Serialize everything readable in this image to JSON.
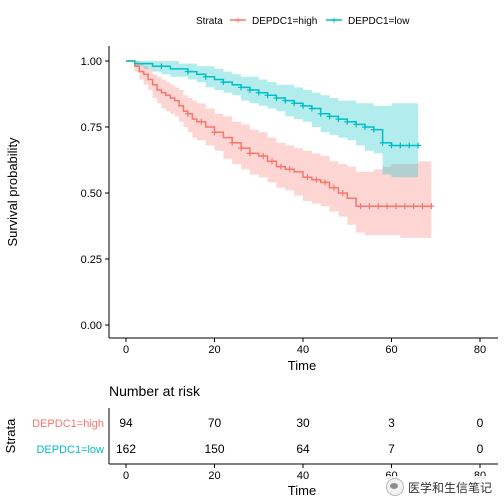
{
  "chart_data": {
    "type": "line",
    "xlabel": "Time",
    "ylabel": "Survival probability",
    "xlim": [
      0,
      80
    ],
    "ylim": [
      0,
      1
    ],
    "x_ticks": [
      0,
      20,
      40,
      60,
      80
    ],
    "y_ticks": [
      "0.00",
      "0.25",
      "0.50",
      "0.75",
      "1.00"
    ],
    "grid": false,
    "legend": {
      "title": "Strata",
      "position": "top"
    },
    "series": [
      {
        "name": "DEPDC1=high",
        "color": "#F8766D",
        "fill": "#F8766D",
        "x": [
          0,
          2,
          3,
          4,
          5,
          6,
          7,
          8,
          9,
          10,
          11,
          12,
          13,
          14,
          15,
          16,
          18,
          20,
          22,
          24,
          26,
          28,
          30,
          32,
          34,
          36,
          38,
          40,
          42,
          44,
          46,
          48,
          50,
          52,
          54,
          56,
          58,
          60,
          62,
          64,
          66,
          68,
          69
        ],
        "y": [
          1.0,
          0.98,
          0.96,
          0.95,
          0.93,
          0.91,
          0.89,
          0.88,
          0.87,
          0.86,
          0.85,
          0.83,
          0.81,
          0.8,
          0.78,
          0.77,
          0.75,
          0.73,
          0.71,
          0.69,
          0.67,
          0.65,
          0.64,
          0.62,
          0.6,
          0.59,
          0.58,
          0.56,
          0.55,
          0.54,
          0.52,
          0.5,
          0.48,
          0.45,
          0.45,
          0.45,
          0.45,
          0.45,
          0.45,
          0.45,
          0.45,
          0.45,
          0.45
        ],
        "upper": [
          1.0,
          1.0,
          0.99,
          0.98,
          0.97,
          0.95,
          0.94,
          0.93,
          0.92,
          0.91,
          0.9,
          0.89,
          0.87,
          0.86,
          0.85,
          0.84,
          0.82,
          0.8,
          0.79,
          0.77,
          0.76,
          0.74,
          0.73,
          0.71,
          0.69,
          0.68,
          0.67,
          0.66,
          0.65,
          0.64,
          0.62,
          0.61,
          0.6,
          0.58,
          0.58,
          0.59,
          0.6,
          0.61,
          0.61,
          0.61,
          0.62,
          0.62,
          0.62
        ],
        "lower": [
          1.0,
          0.96,
          0.93,
          0.91,
          0.89,
          0.86,
          0.84,
          0.82,
          0.81,
          0.8,
          0.79,
          0.77,
          0.75,
          0.73,
          0.71,
          0.7,
          0.68,
          0.66,
          0.63,
          0.61,
          0.59,
          0.57,
          0.56,
          0.54,
          0.52,
          0.51,
          0.49,
          0.47,
          0.46,
          0.45,
          0.43,
          0.41,
          0.38,
          0.35,
          0.34,
          0.34,
          0.34,
          0.34,
          0.33,
          0.33,
          0.33,
          0.33,
          0.33
        ],
        "censor_x": [
          14,
          17,
          20,
          24,
          26,
          28,
          31,
          33,
          35,
          37,
          41,
          43,
          45,
          47,
          49,
          53,
          55,
          57,
          59,
          61,
          63,
          65,
          67,
          69
        ],
        "risk": [
          "94",
          "70",
          "30",
          "3",
          "0"
        ]
      },
      {
        "name": "DEPDC1=low",
        "color": "#00BFC4",
        "fill": "#00BFC4",
        "x": [
          0,
          2,
          4,
          6,
          8,
          10,
          12,
          14,
          16,
          18,
          20,
          22,
          24,
          26,
          28,
          30,
          32,
          34,
          36,
          38,
          40,
          42,
          44,
          46,
          48,
          50,
          52,
          54,
          56,
          58,
          60,
          62,
          64,
          66
        ],
        "y": [
          1.0,
          0.99,
          0.99,
          0.98,
          0.98,
          0.97,
          0.97,
          0.96,
          0.95,
          0.94,
          0.93,
          0.92,
          0.91,
          0.9,
          0.89,
          0.88,
          0.87,
          0.86,
          0.85,
          0.84,
          0.83,
          0.82,
          0.8,
          0.79,
          0.78,
          0.77,
          0.76,
          0.75,
          0.74,
          0.69,
          0.68,
          0.68,
          0.68,
          0.68
        ],
        "upper": [
          1.0,
          1.0,
          1.0,
          1.0,
          1.0,
          1.0,
          0.99,
          0.99,
          0.98,
          0.98,
          0.97,
          0.96,
          0.95,
          0.94,
          0.94,
          0.93,
          0.92,
          0.91,
          0.91,
          0.9,
          0.89,
          0.88,
          0.87,
          0.86,
          0.85,
          0.85,
          0.84,
          0.84,
          0.83,
          0.83,
          0.84,
          0.84,
          0.84,
          0.84
        ],
        "lower": [
          1.0,
          0.98,
          0.97,
          0.96,
          0.95,
          0.94,
          0.94,
          0.93,
          0.92,
          0.9,
          0.89,
          0.88,
          0.87,
          0.85,
          0.84,
          0.83,
          0.82,
          0.81,
          0.79,
          0.78,
          0.77,
          0.75,
          0.73,
          0.72,
          0.71,
          0.7,
          0.68,
          0.66,
          0.65,
          0.57,
          0.56,
          0.56,
          0.56,
          0.56
        ],
        "censor_x": [
          8,
          14,
          18,
          22,
          26,
          28,
          30,
          32,
          34,
          36,
          38,
          40,
          42,
          44,
          46,
          48,
          50,
          52,
          54,
          56,
          58,
          60,
          62,
          64,
          66
        ],
        "risk": [
          "162",
          "150",
          "64",
          "7",
          "0"
        ]
      }
    ],
    "risk_table": {
      "title": "Number at risk",
      "ylabel": "Strata",
      "xlabel": "Time",
      "times": [
        0,
        20,
        40,
        60,
        80
      ]
    }
  },
  "watermark": "医学和生信笔记"
}
